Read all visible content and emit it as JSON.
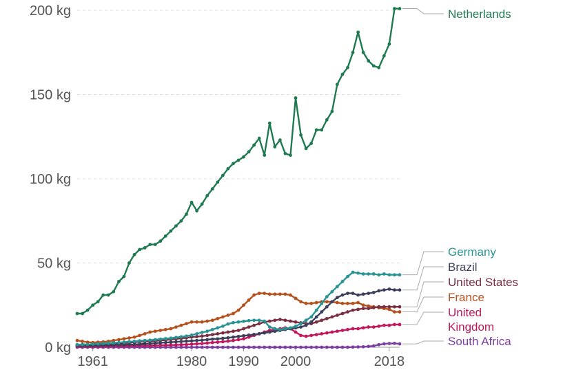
{
  "chart_data": {
    "type": "line",
    "xlim": [
      1958,
      2020
    ],
    "ylim": [
      0,
      200
    ],
    "grid": true,
    "y_ticks": [
      {
        "value": 0,
        "label": "0 kg"
      },
      {
        "value": 50,
        "label": "50 kg"
      },
      {
        "value": 100,
        "label": "100 kg"
      },
      {
        "value": 150,
        "label": "150 kg"
      },
      {
        "value": 200,
        "label": "200 kg"
      }
    ],
    "x_ticks": [
      {
        "value": 1961,
        "label": "1961"
      },
      {
        "value": 1980,
        "label": "1980"
      },
      {
        "value": 1990,
        "label": "1990"
      },
      {
        "value": 2000,
        "label": "2000"
      },
      {
        "value": 2018,
        "label": "2018"
      }
    ],
    "x_start": 1958,
    "series": [
      {
        "name": "Netherlands",
        "color": "#1f7a4f",
        "legend_lines": [
          "Netherlands"
        ],
        "values": [
          20,
          20,
          22,
          25,
          27,
          31,
          31,
          33,
          39,
          42,
          50,
          55,
          58,
          59,
          61,
          61,
          63,
          66,
          69,
          72,
          75,
          79,
          86,
          81,
          85,
          90,
          94,
          98,
          102,
          106,
          109,
          111,
          113,
          116,
          120,
          124,
          114,
          133,
          119,
          123,
          115,
          114,
          148,
          126,
          118,
          121,
          129,
          129,
          135,
          140,
          156,
          162,
          166,
          175,
          187,
          175,
          170,
          167,
          166,
          173,
          180,
          201,
          201
        ]
      },
      {
        "name": "Germany",
        "color": "#2a9394",
        "legend_lines": [
          "Germany"
        ],
        "values": [
          1.5,
          1.6,
          1.7,
          1.9,
          2,
          2.2,
          2.4,
          2.6,
          2.8,
          3,
          3.3,
          3.5,
          3.8,
          4,
          4.2,
          4.5,
          4.8,
          5.1,
          5.4,
          5.8,
          6.2,
          6.6,
          7.2,
          8,
          8.8,
          9.5,
          10.5,
          11.5,
          12.5,
          13.8,
          14.6,
          15,
          15.4,
          15.8,
          16,
          16,
          15.5,
          12,
          11,
          10.5,
          11,
          11.5,
          12.5,
          14,
          16,
          18,
          22,
          26,
          30,
          33,
          36,
          39,
          42,
          44.5,
          44,
          43.5,
          43.5,
          43.5,
          43,
          43.5,
          43,
          43,
          43
        ]
      },
      {
        "name": "Brazil",
        "color": "#3b3f5c",
        "legend_lines": [
          "Brazil"
        ],
        "values": [
          1,
          1,
          1,
          1,
          1.1,
          1.2,
          1.2,
          1.3,
          1.4,
          1.5,
          1.6,
          1.7,
          1.8,
          2,
          2.2,
          2.4,
          2.6,
          2.8,
          3,
          3.2,
          3.4,
          3.6,
          3.8,
          4,
          4.2,
          4.5,
          4.8,
          5,
          5.3,
          5.6,
          6,
          6.4,
          6.8,
          7.2,
          7.6,
          8,
          8.5,
          9,
          9.5,
          10,
          10.5,
          11,
          11.5,
          12,
          13,
          15,
          18,
          21,
          24,
          27,
          29.5,
          31,
          32,
          32,
          31,
          31.5,
          32,
          32.5,
          33.5,
          34,
          34.5,
          34,
          34
        ]
      },
      {
        "name": "United States",
        "color": "#7a2e42",
        "legend_lines": [
          "United States"
        ],
        "values": [
          1.5,
          1.6,
          1.7,
          1.8,
          1.9,
          2,
          2.1,
          2.2,
          2.3,
          2.5,
          2.7,
          3,
          3.2,
          3.4,
          3.6,
          3.8,
          4,
          4.3,
          4.6,
          5,
          5.3,
          5.6,
          6,
          6.3,
          6.6,
          7,
          7.5,
          8,
          8.5,
          9,
          9.5,
          10,
          11,
          12,
          13,
          14,
          15,
          15.5,
          16,
          16.5,
          16,
          15.5,
          15,
          14.5,
          14,
          14,
          15,
          16,
          17,
          18,
          19,
          20,
          21,
          22,
          22.5,
          23,
          23,
          23.5,
          24,
          24,
          24,
          24,
          24
        ]
      },
      {
        "name": "France",
        "color": "#b5511d",
        "legend_lines": [
          "France"
        ],
        "values": [
          4,
          3.5,
          3,
          2.8,
          3,
          3.2,
          3.5,
          4,
          4.5,
          5,
          5.5,
          6,
          7,
          8,
          9,
          9.5,
          10,
          10.5,
          11,
          12,
          13,
          14,
          15,
          15,
          15,
          15.5,
          16,
          17,
          18,
          19,
          20,
          22,
          25,
          28,
          31,
          32,
          32,
          31.5,
          31.5,
          31.5,
          31.5,
          31,
          29,
          27,
          26,
          26,
          26.5,
          27,
          27,
          27,
          26.5,
          26,
          26,
          26,
          26.5,
          25,
          24.5,
          24,
          23.5,
          23,
          22.5,
          21,
          21
        ]
      },
      {
        "name": "United Kingdom",
        "color": "#c2185b",
        "legend_lines": [
          "United",
          "Kingdom"
        ],
        "values": [
          0.5,
          0.5,
          0.5,
          0.5,
          0.5,
          0.6,
          0.6,
          0.7,
          0.7,
          0.8,
          0.8,
          0.9,
          1,
          1,
          1,
          1.1,
          1.2,
          1.2,
          1.3,
          1.4,
          1.5,
          1.6,
          1.8,
          2,
          2.2,
          2.5,
          2.8,
          3,
          3.3,
          3.6,
          4,
          4.5,
          5,
          6,
          7,
          8,
          9,
          10,
          10.5,
          11,
          11.5,
          11,
          9,
          7,
          6.5,
          7,
          7.5,
          8,
          8.5,
          9,
          9.5,
          10,
          10.5,
          11,
          11,
          11.5,
          12,
          12,
          12.5,
          13,
          13,
          13.5,
          13.5
        ]
      },
      {
        "name": "South Africa",
        "color": "#7b3fa0",
        "legend_lines": [
          "South Africa"
        ],
        "values": [
          0,
          0,
          0,
          0,
          0,
          0,
          0,
          0,
          0,
          0,
          0,
          0,
          0,
          0,
          0,
          0,
          0,
          0,
          0,
          0,
          0,
          0,
          0,
          0,
          0,
          0,
          0,
          0,
          0,
          0,
          0,
          0,
          0,
          0,
          0,
          0,
          0,
          0,
          0,
          0,
          0,
          0,
          0,
          0,
          0,
          0,
          0,
          0,
          0,
          0,
          0,
          0,
          0,
          0.1,
          0.2,
          0.3,
          0.5,
          0.8,
          1.5,
          2,
          2.2,
          2.3,
          2
        ]
      }
    ]
  }
}
